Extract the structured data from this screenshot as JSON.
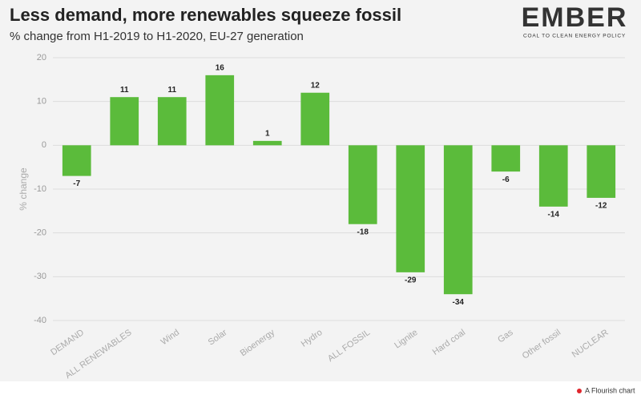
{
  "chart_data": {
    "type": "bar",
    "title": "Less demand, more renewables squeeze fossil",
    "subtitle": "% change from H1-2019 to H1-2020, EU-27 generation",
    "logo": "EMBER",
    "logo_tagline": "COAL TO CLEAN ENERGY POLICY",
    "y_label": "% change",
    "footer": "A Flourish chart",
    "categories": [
      "DEMAND",
      "ALL RENEWABLES",
      "Wind",
      "Solar",
      "Bioenergy",
      "Hydro",
      "ALL FOSSIL",
      "Lignite",
      "Hard coal",
      "Gas",
      "Other fossil",
      "NUCLEAR"
    ],
    "values": [
      -7,
      11,
      11,
      16,
      1,
      12,
      -18,
      -29,
      -34,
      -6,
      -14,
      -12
    ],
    "color": "#5bbb3b",
    "ylim": [
      -40,
      20
    ],
    "yticks": [
      20,
      10,
      0,
      -10,
      -20,
      -30,
      -40
    ],
    "grid": true
  }
}
